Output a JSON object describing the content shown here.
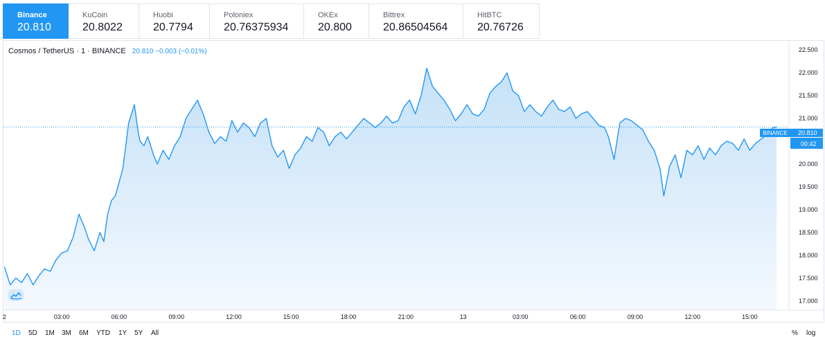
{
  "exchanges": [
    {
      "name": "Binance",
      "price": "20.810",
      "active": true
    },
    {
      "name": "KuCoin",
      "price": "20.8022",
      "active": false
    },
    {
      "name": "Huobi",
      "price": "20.7794",
      "active": false
    },
    {
      "name": "Poloniex",
      "price": "20.76375934",
      "active": false
    },
    {
      "name": "OKEx",
      "price": "20.800",
      "active": false
    },
    {
      "name": "Bittrex",
      "price": "20.86504564",
      "active": false
    },
    {
      "name": "HitBTC",
      "price": "20.76726",
      "active": false
    }
  ],
  "legend": {
    "symbol": "Cosmos / TetherUS · 1 · BINANCE",
    "value": "20.810  −0.003 (−0.01%)"
  },
  "price_label": {
    "exchange": "BINANCE",
    "price": "20.810",
    "countdown": "00:42"
  },
  "ranges": [
    "1D",
    "5D",
    "1M",
    "3M",
    "6M",
    "YTD",
    "1Y",
    "5Y",
    "All"
  ],
  "active_range": "1D",
  "right_controls": {
    "percent": "%",
    "log": "log"
  },
  "colors": {
    "line": "#2196f3",
    "fill_top": "#c5e1f8",
    "fill_bottom": "#f4f9fe",
    "accent": "#2196f3"
  },
  "chart_data": {
    "type": "area",
    "title": "",
    "xlabel": "",
    "ylabel": "",
    "ylim": [
      16.8,
      22.7
    ],
    "yticks": [
      17.0,
      17.5,
      18.0,
      18.5,
      19.0,
      19.5,
      20.0,
      20.5,
      21.0,
      21.5,
      22.0,
      22.5
    ],
    "ytick_labels": [
      "17.000",
      "17.500",
      "18.000",
      "18.500",
      "19.000",
      "19.500",
      "20.000",
      "20.500",
      "21.000",
      "21.500",
      "22.000",
      "22.500"
    ],
    "xlim": [
      -1.05,
      40.05
    ],
    "xticks": [
      -1,
      2,
      5,
      8,
      11,
      14,
      17,
      20,
      23,
      26,
      29,
      32,
      35,
      38
    ],
    "xtick_labels": [
      "2",
      "03:00",
      "06:00",
      "09:00",
      "12:00",
      "15:00",
      "18:00",
      "21:00",
      "13",
      "03:00",
      "06:00",
      "09:00",
      "12:00",
      "15:00"
    ],
    "x_units": "hours since 00:00 on the 12th (1 = 01:00)",
    "last_price": 20.81,
    "series": [
      {
        "x": [
          -1.0,
          -0.7,
          -0.4,
          -0.1,
          0.2,
          0.5,
          0.8,
          1.1,
          1.4,
          1.7,
          2.0,
          2.3,
          2.6,
          2.9,
          3.2,
          3.4,
          3.7,
          4.0,
          4.2,
          4.4,
          4.6,
          4.8,
          5.0,
          5.2,
          5.5,
          5.8,
          6.0,
          6.1,
          6.3,
          6.5,
          6.8,
          7.0,
          7.3,
          7.6,
          7.9,
          8.2,
          8.5,
          8.8,
          9.1,
          9.4,
          9.7,
          10.0,
          10.3,
          10.6,
          10.9,
          11.2,
          11.5,
          11.8,
          12.1,
          12.4,
          12.7,
          13.0,
          13.3,
          13.6,
          13.9,
          14.2,
          14.5,
          14.8,
          15.1,
          15.4,
          15.7,
          16.0,
          16.3,
          16.6,
          16.9,
          17.2,
          17.5,
          17.8,
          18.1,
          18.4,
          18.7,
          19.0,
          19.3,
          19.6,
          19.9,
          20.2,
          20.5,
          20.8,
          21.1,
          21.4,
          21.7,
          22.0,
          22.3,
          22.6,
          22.9,
          23.2,
          23.5,
          23.8,
          24.1,
          24.4,
          24.7,
          25.0,
          25.3,
          25.6,
          25.9,
          26.2,
          26.5,
          26.8,
          27.1,
          27.4,
          27.7,
          28.0,
          28.3,
          28.6,
          28.9,
          29.2,
          29.5,
          29.8,
          30.1,
          30.4,
          30.6,
          30.9,
          31.2,
          31.5,
          31.8,
          32.1,
          32.4,
          32.7,
          33.0,
          33.3,
          33.5,
          33.8,
          34.1,
          34.4,
          34.7,
          35.0,
          35.3,
          35.6,
          35.9,
          36.2,
          36.5,
          36.8,
          37.1,
          37.4,
          37.7,
          38.0,
          38.3,
          38.6,
          38.9,
          39.2,
          39.4
        ],
        "y": [
          17.75,
          17.35,
          17.5,
          17.4,
          17.6,
          17.35,
          17.55,
          17.7,
          17.65,
          17.9,
          18.05,
          18.1,
          18.4,
          18.9,
          18.6,
          18.35,
          18.1,
          18.5,
          18.3,
          18.9,
          19.2,
          19.3,
          19.6,
          19.9,
          20.9,
          21.3,
          20.7,
          20.5,
          20.4,
          20.6,
          20.2,
          20.0,
          20.3,
          20.1,
          20.4,
          20.6,
          21.0,
          21.2,
          21.4,
          21.1,
          20.7,
          20.45,
          20.6,
          20.5,
          20.95,
          20.7,
          20.9,
          20.8,
          20.6,
          20.9,
          21.0,
          20.4,
          20.15,
          20.3,
          19.9,
          20.2,
          20.35,
          20.6,
          20.5,
          20.8,
          20.7,
          20.4,
          20.6,
          20.7,
          20.55,
          20.7,
          20.85,
          21.0,
          20.9,
          20.8,
          20.9,
          21.05,
          20.9,
          20.95,
          21.25,
          21.4,
          21.1,
          21.5,
          22.1,
          21.7,
          21.55,
          21.4,
          21.2,
          20.95,
          21.1,
          21.3,
          21.1,
          21.05,
          21.2,
          21.55,
          21.7,
          21.8,
          22.0,
          21.6,
          21.5,
          21.15,
          21.3,
          21.15,
          21.05,
          21.25,
          21.4,
          21.2,
          21.15,
          21.25,
          21.0,
          21.1,
          21.15,
          21.0,
          20.85,
          20.8,
          20.6,
          20.1,
          20.9,
          21.0,
          20.95,
          20.85,
          20.75,
          20.5,
          20.3,
          19.9,
          19.3,
          19.95,
          20.2,
          19.7,
          20.3,
          20.2,
          20.4,
          20.1,
          20.35,
          20.2,
          20.4,
          20.5,
          20.45,
          20.3,
          20.55,
          20.3,
          20.45,
          20.55,
          20.65,
          20.8,
          20.81
        ],
        "color": "#2196f3"
      }
    ],
    "grid": false,
    "legend_position": "top-left"
  }
}
